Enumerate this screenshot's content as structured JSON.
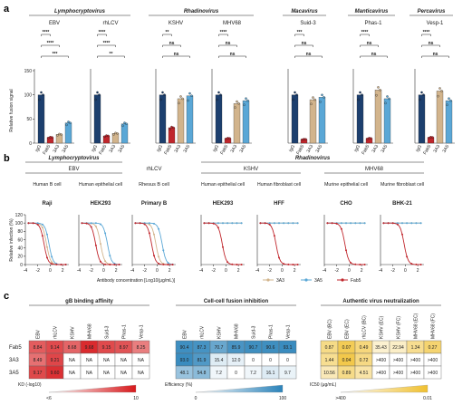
{
  "panel_letters": [
    "a",
    "b",
    "c"
  ],
  "colors": {
    "IgG": "#1c3f6e",
    "Fab5": "#c0262c",
    "3A3": "#d2b48c",
    "3A5": "#5aa7d6",
    "accent_red": "#d7191c",
    "accent_blue": "#2b83ba",
    "accent_yellow": "#f0c030"
  },
  "panel_a": {
    "groups": [
      {
        "label": "Lymphocryptovirus",
        "viruses": [
          0,
          1
        ]
      },
      {
        "label": "Rhadinovirus",
        "viruses": [
          2,
          3
        ]
      },
      {
        "label": "Macavirus",
        "viruses": [
          4
        ]
      },
      {
        "label": "Manticavirus",
        "viruses": [
          5
        ]
      },
      {
        "label": "Percavirus",
        "viruses": [
          6
        ]
      }
    ],
    "ylabel": "Relative fusion signal",
    "yticks": [
      "0",
      "50",
      "100",
      "150"
    ],
    "xcats": [
      "IgG",
      "Fab5",
      "3A3",
      "3A5"
    ],
    "viruses": [
      {
        "name": "EBV",
        "sig": [
          [
            "****",
            0,
            1
          ],
          [
            "****",
            0,
            2
          ],
          [
            "***",
            0,
            3
          ]
        ]
      },
      {
        "name": "rhLCV",
        "sig": [
          [
            "****",
            0,
            1
          ],
          [
            "****",
            0,
            2
          ],
          [
            "**",
            0,
            3
          ]
        ]
      },
      {
        "name": "KSHV",
        "sig": [
          [
            "**",
            0,
            1
          ],
          [
            "ns",
            0,
            2
          ],
          [
            "ns",
            0,
            3
          ]
        ]
      },
      {
        "name": "MHV68",
        "sig": [
          [
            "****",
            0,
            1
          ],
          [
            "ns",
            0,
            2
          ],
          [
            "ns",
            0,
            3
          ]
        ]
      },
      {
        "name": "Suid-3",
        "sig": [
          [
            "***",
            0,
            1
          ],
          [
            "ns",
            0,
            2
          ],
          [
            "ns",
            0,
            3
          ]
        ]
      },
      {
        "name": "Phas-1",
        "sig": [
          [
            "****",
            0,
            1
          ],
          [
            "ns",
            0,
            2
          ],
          [
            "ns",
            0,
            3
          ]
        ]
      },
      {
        "name": "Vesp-1",
        "sig": [
          [
            "****",
            0,
            1
          ],
          [
            "ns",
            0,
            2
          ],
          [
            "ns",
            0,
            3
          ]
        ]
      }
    ]
  },
  "panel_b": {
    "groups": [
      {
        "label": "Lymphocryptovirus",
        "panels": [
          0,
          1
        ]
      },
      {
        "label": "Rhadinovirus",
        "panels": [
          3,
          6
        ]
      }
    ],
    "virus_labels": [
      {
        "label": "EBV",
        "panels": [
          0,
          1
        ]
      },
      {
        "label": "rhLCV",
        "panels": [
          2,
          2
        ]
      },
      {
        "label": "KSHV",
        "panels": [
          3,
          4
        ]
      },
      {
        "label": "MHV68",
        "panels": [
          5,
          6
        ]
      }
    ],
    "ylabel": "Relative infection (%)",
    "xlabel": "Antibody concentration [Log10(μg/mL)]",
    "yticks": [
      "0",
      "20",
      "40",
      "60",
      "80",
      "100",
      "120"
    ],
    "xticks": [
      "-4",
      "-2",
      "0",
      "2"
    ],
    "legend": [
      "3A3",
      "3A5",
      "Fab5"
    ],
    "panels": [
      {
        "cell": "Human B cell",
        "line": "Raji"
      },
      {
        "cell": "Human epithelial cell",
        "line": "HEK293"
      },
      {
        "cell": "Rhesus B cell",
        "line": "Primary B"
      },
      {
        "cell": "Human epithelial cell",
        "line": "HEK293"
      },
      {
        "cell": "Human fibroblast cell",
        "line": "HFF"
      },
      {
        "cell": "Murine epithelial cell",
        "line": "CHO"
      },
      {
        "cell": "Murine fibroblast cell",
        "line": "BHK-21"
      }
    ]
  },
  "panel_c": {
    "rows": [
      "Fab5",
      "3A3",
      "3A5"
    ],
    "hm1": {
      "title": "gB binding affinity",
      "cols": [
        "EBV",
        "rhLCV",
        "KSHV",
        "MHV68",
        "Suid-3",
        "Phas-1",
        "Vesp-1"
      ],
      "values": [
        [
          "8.84",
          "9.14",
          "8.68",
          "9.68",
          "9.15",
          "8.97",
          "8.25"
        ],
        [
          "8.49",
          "9.21",
          "NA",
          "NA",
          "NA",
          "NA",
          "NA"
        ],
        [
          "9.17",
          "9.60",
          "NA",
          "NA",
          "NA",
          "NA",
          "NA"
        ]
      ],
      "legend_title": "KD (-log10)",
      "legend_min": "<6",
      "legend_max": "10"
    },
    "hm2": {
      "title": "Cell-cell fusion inhibition",
      "cols": [
        "EBV",
        "rhLCV",
        "KSHV",
        "MHV68",
        "Suid-3",
        "Phas-1",
        "Vesp-1"
      ],
      "values": [
        [
          "90.4",
          "87.3",
          "70.7",
          "85.9",
          "90.7",
          "90.6",
          "93.1"
        ],
        [
          "93.0",
          "81.9",
          "15.4",
          "12.0",
          "0",
          "0",
          "0"
        ],
        [
          "48.1",
          "54.8",
          "7.2",
          "0",
          "7.2",
          "16.1",
          "9.7"
        ]
      ],
      "legend_title": "Efficiency (%)",
      "legend_min": "0",
      "legend_max": "100"
    },
    "hm3": {
      "title": "Authentic virus neutralization",
      "cols": [
        "EBV (BC)",
        "EBV (EC)",
        "rhLCV (BC)",
        "KSHV (EC)",
        "KSHV (FC)",
        "MHV68 (EC)",
        "MHV68 (FC)"
      ],
      "values": [
        [
          "0.87",
          "0.07",
          "0.49",
          "35.43",
          "22.94",
          "1.34",
          "0.27"
        ],
        [
          "1.44",
          "0.04",
          "0.72",
          ">400",
          ">400",
          ">400",
          ">400"
        ],
        [
          "10.56",
          "0.89",
          "4.51",
          ">400",
          ">400",
          ">400",
          ">400"
        ]
      ],
      "legend_title": "IC50 (μg/mL)",
      "legend_min": ">400",
      "legend_max": "0.01"
    }
  }
}
